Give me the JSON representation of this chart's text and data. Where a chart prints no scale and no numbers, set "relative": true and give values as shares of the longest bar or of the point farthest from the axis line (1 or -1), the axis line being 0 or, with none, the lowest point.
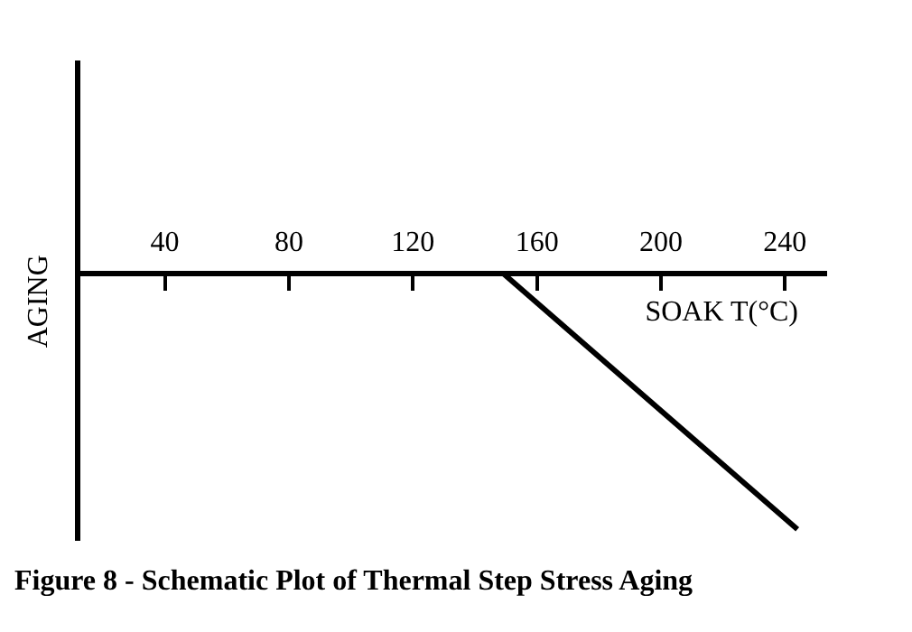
{
  "chart_data": {
    "type": "line",
    "title": "Figure 8 - Schematic Plot of Thermal Step Stress Aging",
    "xlabel": "SOAK T(°C)",
    "ylabel": "AGING",
    "relative": true,
    "x": [
      149,
      244
    ],
    "series": [
      {
        "color": "#000000",
        "values": [
          0,
          -1
        ]
      }
    ],
    "xlim": [
      12,
      253
    ],
    "xticks": [
      40,
      80,
      120,
      160,
      200,
      240
    ],
    "grid": false,
    "legend": false,
    "marker": "none",
    "line_style": "solid"
  }
}
